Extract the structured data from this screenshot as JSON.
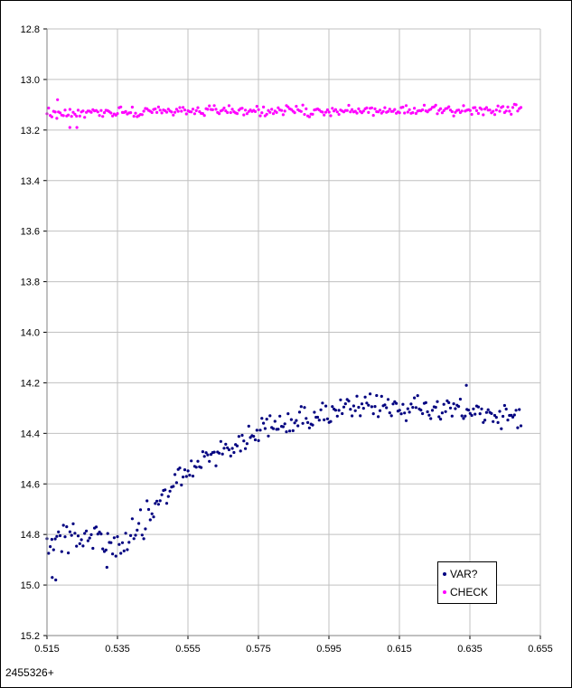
{
  "chart_data": {
    "type": "scatter",
    "title": "",
    "xlabel": "2455326+",
    "ylabel": "",
    "xlim": [
      0.515,
      0.655
    ],
    "ylim": [
      12.8,
      15.2
    ],
    "y_inverted": true,
    "x_ticks": [
      "0.515",
      "0.535",
      "0.555",
      "0.575",
      "0.595",
      "0.615",
      "0.635",
      "0.655"
    ],
    "y_ticks": [
      "12.8",
      "13.0",
      "13.2",
      "13.4",
      "13.6",
      "13.8",
      "14.0",
      "14.2",
      "14.4",
      "14.6",
      "14.8",
      "15.0",
      "15.2"
    ],
    "grid": true,
    "legend_position": "bottom-right",
    "series": [
      {
        "name": "VAR?",
        "color": "#000080",
        "x_range": [
          0.515,
          0.6495
        ],
        "curve": [
          [
            0.515,
            14.82
          ],
          [
            0.52,
            14.8
          ],
          [
            0.525,
            14.81
          ],
          [
            0.53,
            14.83
          ],
          [
            0.535,
            14.84
          ],
          [
            0.54,
            14.79
          ],
          [
            0.545,
            14.7
          ],
          [
            0.55,
            14.62
          ],
          [
            0.555,
            14.55
          ],
          [
            0.56,
            14.5
          ],
          [
            0.565,
            14.46
          ],
          [
            0.57,
            14.43
          ],
          [
            0.575,
            14.39
          ],
          [
            0.58,
            14.37
          ],
          [
            0.585,
            14.35
          ],
          [
            0.59,
            14.33
          ],
          [
            0.595,
            14.32
          ],
          [
            0.6,
            14.31
          ],
          [
            0.61,
            14.29
          ],
          [
            0.62,
            14.3
          ],
          [
            0.63,
            14.31
          ],
          [
            0.64,
            14.32
          ],
          [
            0.6495,
            14.34
          ]
        ],
        "scatter_amplitude": 0.06,
        "outliers": [
          [
            0.5165,
            14.97
          ],
          [
            0.5175,
            14.98
          ],
          [
            0.532,
            14.93
          ],
          [
            0.634,
            14.21
          ]
        ]
      },
      {
        "name": "CHECK",
        "color": "#ff00ff",
        "x_range": [
          0.515,
          0.6495
        ],
        "curve": [
          [
            0.515,
            13.13
          ],
          [
            0.6495,
            13.12
          ]
        ],
        "scatter_amplitude": 0.025,
        "outliers": [
          [
            0.5215,
            13.19
          ],
          [
            0.5235,
            13.19
          ],
          [
            0.518,
            13.08
          ]
        ]
      }
    ]
  }
}
